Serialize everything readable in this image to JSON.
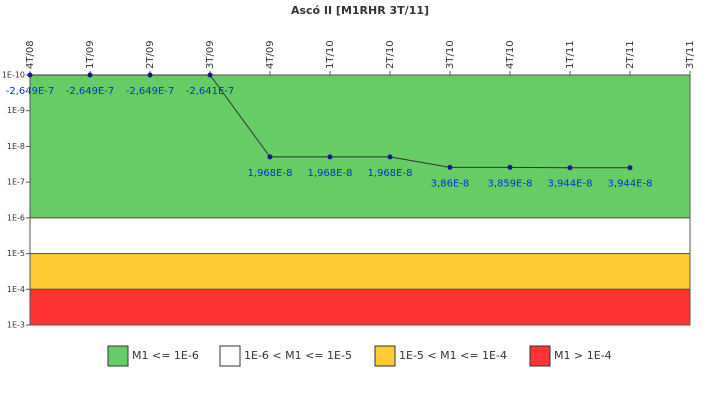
{
  "chart_data": {
    "type": "line",
    "title": "Ascó II [M1RHR 3T/11]",
    "categories": [
      "4T/08",
      "1T/09",
      "2T/09",
      "3T/09",
      "4T/09",
      "1T/10",
      "2T/10",
      "3T/10",
      "4T/10",
      "1T/11",
      "2T/11",
      "3T/11"
    ],
    "series": [
      {
        "color": "#1a1a8c",
        "values": [
          -2.649e-07,
          -2.649e-07,
          -2.649e-07,
          -2.641e-07,
          1.968e-08,
          1.968e-08,
          1.968e-08,
          3.86e-08,
          3.859e-08,
          3.944e-08,
          3.944e-08,
          null
        ],
        "value_labels": [
          "-2,649E-7",
          "-2,649E-7",
          "-2,649E-7",
          "-2,641E-7",
          "1,968E-8",
          "1,968E-8",
          "1,968E-8",
          "3,86E-8",
          "3,859E-8",
          "3,944E-8",
          "3,944E-8",
          null
        ]
      }
    ],
    "log_scale": true,
    "y_inverted": true,
    "ylim": [
      1e-10,
      0.001
    ],
    "yticks": [
      {
        "value": 1e-10,
        "label": "1E-10"
      },
      {
        "value": 1e-09,
        "label": "1E-9"
      },
      {
        "value": 1e-08,
        "label": "1E-8"
      },
      {
        "value": 1e-07,
        "label": "1E-7"
      },
      {
        "value": 1e-06,
        "label": "1E-6"
      },
      {
        "value": 1e-05,
        "label": "1E-5"
      },
      {
        "value": 0.0001,
        "label": "1E-4"
      },
      {
        "value": 0.001,
        "label": "1E-3"
      }
    ],
    "bands": [
      {
        "name": "M1 <= 1E-6",
        "from": 1e-10,
        "to": 1e-06,
        "color": "#66cc66"
      },
      {
        "name": "1E-6 < M1 <= 1E-5",
        "from": 1e-06,
        "to": 1e-05,
        "color": "#ffffff"
      },
      {
        "name": "1E-5 < M1 <= 1E-4",
        "from": 1e-05,
        "to": 0.0001,
        "color": "#ffcc33"
      },
      {
        "name": "M1 > 1E-4",
        "from": 0.0001,
        "to": 0.001,
        "color": "#ff3333"
      }
    ],
    "legend": "bottom"
  }
}
